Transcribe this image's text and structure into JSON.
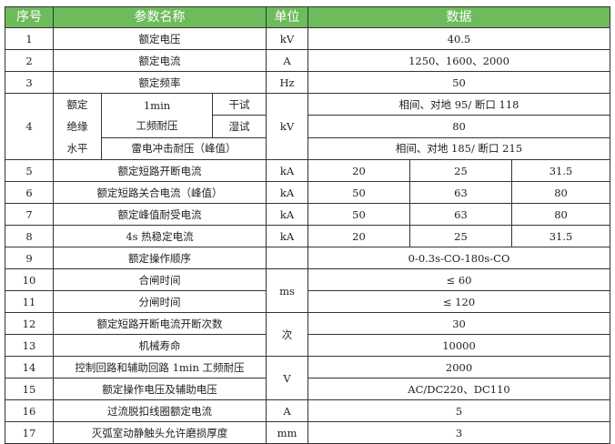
{
  "header": {
    "seq": "序号",
    "name": "参数名称",
    "unit": "单位",
    "data": "数据"
  },
  "header_color": "#6dbb5b",
  "rows": [
    {
      "seq": "1",
      "name": "额定电压",
      "unit": "kV",
      "value": "40.5"
    },
    {
      "seq": "2",
      "name": "额定电流",
      "unit": "A",
      "value": "1250、1600、2000"
    },
    {
      "seq": "3",
      "name": "额定频率",
      "unit": "Hz",
      "value": "50"
    },
    {
      "seq": "4",
      "group": [
        "额定",
        "绝缘",
        "水平"
      ],
      "sub_name": "1min",
      "sub_name2": "工频耐压",
      "dry": "干试",
      "wet": "湿试",
      "lightning": "雷电冲击耐压（峰值）",
      "unit": "kV",
      "dry_value": "相间、对地 95/ 断口 118",
      "wet_value": "80",
      "lightning_value": "相间、对地 185/ 断口 215"
    },
    {
      "seq": "5",
      "name": "额定短路开断电流",
      "unit": "kA",
      "values": [
        "20",
        "25",
        "31.5"
      ]
    },
    {
      "seq": "6",
      "name": "额定短路关合电流（峰值）",
      "unit": "kA",
      "values": [
        "50",
        "63",
        "80"
      ]
    },
    {
      "seq": "7",
      "name": "额定峰值耐受电流",
      "unit": "kA",
      "values": [
        "50",
        "63",
        "80"
      ]
    },
    {
      "seq": "8",
      "name": "4s 热稳定电流",
      "unit": "kA",
      "values": [
        "20",
        "25",
        "31.5"
      ]
    },
    {
      "seq": "9",
      "name": "额定操作顺序",
      "unit": "",
      "value": "0-0.3s-CO-180s-CO"
    },
    {
      "seq": "10",
      "name": "合闸时间",
      "unit": "ms",
      "value": "≤ 60"
    },
    {
      "seq": "11",
      "name": "分闸时间",
      "value": "≤ 120"
    },
    {
      "seq": "12",
      "name": "额定短路开断电流开断次数",
      "unit": "次",
      "value": "30"
    },
    {
      "seq": "13",
      "name": "机械寿命",
      "value": "10000"
    },
    {
      "seq": "14",
      "name": "控制回路和辅助回路 1min 工频耐压",
      "unit": "V",
      "value": "2000"
    },
    {
      "seq": "15",
      "name": "额定操作电压及辅助电压",
      "value": "AC/DC220、DC110"
    },
    {
      "seq": "16",
      "name": "过流脱扣线圈额定电流",
      "unit": "A",
      "value": "5"
    },
    {
      "seq": "17",
      "name": "灭弧室动静触头允许磨损厚度",
      "unit": "mm",
      "value": "3"
    }
  ]
}
